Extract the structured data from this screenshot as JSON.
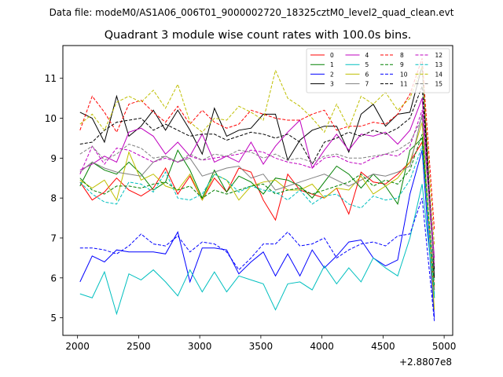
{
  "figure": {
    "suptitle": "Data file: modeM0/AS1A06_006T01_9000002720_18325cztM0_level2_quad_clean.evt"
  },
  "chart_data": {
    "type": "line",
    "title": "Quadrant 3 module wise count rates with 100.0s bins.",
    "xlabel": "",
    "ylabel": "",
    "x_offset_label": "+2.8807e8",
    "xlim": [
      1880,
      5070
    ],
    "ylim": [
      4.56,
      11.82
    ],
    "x_ticks": [
      2000,
      2500,
      3000,
      3500,
      4000,
      4500,
      5000
    ],
    "x_tick_labels": [
      "2000",
      "2500",
      "3000",
      "3500",
      "4000",
      "4500",
      "5000"
    ],
    "y_ticks": [
      5,
      6,
      7,
      8,
      9,
      10,
      11
    ],
    "y_tick_labels": [
      "5",
      "6",
      "7",
      "8",
      "9",
      "10",
      "11"
    ],
    "legend_position": "top-right",
    "x": [
      2020,
      2120,
      2220,
      2320,
      2420,
      2520,
      2620,
      2720,
      2820,
      2920,
      3020,
      3120,
      3220,
      3320,
      3420,
      3520,
      3620,
      3720,
      3820,
      3920,
      4020,
      4120,
      4220,
      4320,
      4420,
      4520,
      4620,
      4720,
      4820,
      4920
    ],
    "series": [
      {
        "name": "0",
        "color": "#ff0000",
        "dash": "solid",
        "values": [
          8.4,
          7.95,
          8.15,
          8.5,
          8.2,
          8.05,
          8.25,
          8.75,
          8.1,
          8.55,
          7.95,
          8.5,
          8.15,
          8.75,
          8.65,
          7.95,
          7.45,
          8.6,
          8.2,
          8.1,
          8.0,
          8.25,
          7.6,
          8.65,
          8.4,
          8.35,
          8.6,
          8.9,
          9.4,
          5.7
        ]
      },
      {
        "name": "1",
        "color": "#008000",
        "dash": "solid",
        "values": [
          8.3,
          8.9,
          8.7,
          8.6,
          8.9,
          8.6,
          8.2,
          8.4,
          9.2,
          8.7,
          8.0,
          8.7,
          8.15,
          8.55,
          8.4,
          8.1,
          8.5,
          8.45,
          8.3,
          8.0,
          8.4,
          8.8,
          8.6,
          8.25,
          8.6,
          8.3,
          7.85,
          9.2,
          9.5,
          5.5
        ]
      },
      {
        "name": "2",
        "color": "#0000ff",
        "dash": "solid",
        "values": [
          5.9,
          6.55,
          6.4,
          6.7,
          6.65,
          6.65,
          6.65,
          6.6,
          7.15,
          5.9,
          6.75,
          6.75,
          6.7,
          6.1,
          6.4,
          6.65,
          6.05,
          6.6,
          6.05,
          6.7,
          6.25,
          6.55,
          6.9,
          6.95,
          6.5,
          6.3,
          6.45,
          8.1,
          9.2,
          5.0
        ]
      },
      {
        "name": "3",
        "color": "#000000",
        "dash": "solid",
        "values": [
          10.15,
          10.0,
          9.4,
          10.55,
          9.55,
          9.8,
          10.2,
          9.7,
          10.2,
          9.7,
          9.1,
          10.25,
          9.55,
          9.7,
          9.75,
          10.1,
          10.1,
          8.95,
          9.45,
          9.7,
          9.8,
          9.8,
          9.15,
          10.1,
          10.35,
          9.8,
          10.1,
          10.15,
          11.3,
          6.0
        ]
      },
      {
        "name": "4",
        "color": "#bf00bf",
        "dash": "solid",
        "values": [
          8.7,
          8.85,
          9.05,
          8.9,
          9.65,
          9.75,
          9.55,
          9.1,
          9.4,
          9.05,
          9.6,
          8.9,
          9.05,
          8.9,
          9.4,
          8.85,
          9.3,
          9.65,
          9.95,
          8.75,
          9.2,
          9.6,
          9.2,
          9.6,
          9.55,
          9.65,
          9.35,
          9.7,
          10.5,
          6.5
        ]
      },
      {
        "name": "5",
        "color": "#00bfbf",
        "dash": "solid",
        "values": [
          5.6,
          5.5,
          6.15,
          5.1,
          6.1,
          5.95,
          6.2,
          5.9,
          5.55,
          6.2,
          5.65,
          6.15,
          5.65,
          6.05,
          5.95,
          5.85,
          5.2,
          5.85,
          5.9,
          5.7,
          6.3,
          5.85,
          6.25,
          5.9,
          6.5,
          6.25,
          6.05,
          7.0,
          8.35,
          5.5
        ]
      },
      {
        "name": "6",
        "color": "#bfbf00",
        "dash": "solid",
        "values": [
          8.45,
          8.25,
          8.45,
          7.95,
          9.15,
          8.45,
          8.6,
          8.3,
          8.2,
          8.6,
          7.95,
          8.6,
          8.45,
          7.95,
          8.3,
          8.4,
          8.45,
          8.2,
          8.2,
          8.35,
          8.0,
          8.25,
          8.2,
          8.55,
          8.1,
          8.3,
          8.5,
          8.9,
          9.9,
          5.2
        ]
      },
      {
        "name": "7",
        "color": "#808080",
        "dash": "solid",
        "values": [
          8.65,
          8.9,
          8.75,
          8.65,
          8.6,
          8.55,
          8.9,
          9.05,
          8.9,
          9.0,
          8.55,
          8.65,
          8.75,
          8.8,
          8.5,
          8.6,
          8.2,
          8.3,
          8.4,
          8.5,
          8.6,
          8.45,
          8.3,
          8.45,
          8.6,
          8.55,
          8.65,
          8.8,
          10.1,
          6.2
        ]
      },
      {
        "name": "8",
        "color": "#ff0000",
        "dash": "dashed",
        "values": [
          9.7,
          10.55,
          10.15,
          9.65,
          10.35,
          10.45,
          10.15,
          9.9,
          10.3,
          9.85,
          10.2,
          9.9,
          9.75,
          9.85,
          10.2,
          10.1,
          10.0,
          9.95,
          9.95,
          10.1,
          10.2,
          9.7,
          9.8,
          9.8,
          9.9,
          9.85,
          10.1,
          10.6,
          11.5,
          7.2
        ]
      },
      {
        "name": "9",
        "color": "#008000",
        "dash": "dashed",
        "values": [
          8.5,
          8.2,
          8.1,
          8.3,
          8.3,
          8.25,
          8.35,
          8.4,
          8.2,
          8.3,
          8.0,
          8.2,
          8.1,
          8.2,
          8.3,
          8.35,
          8.1,
          8.2,
          8.25,
          8.1,
          8.2,
          8.3,
          8.4,
          8.6,
          8.3,
          8.45,
          8.35,
          8.7,
          9.6,
          5.8
        ]
      },
      {
        "name": "10",
        "color": "#0000ff",
        "dash": "dashed",
        "values": [
          6.75,
          6.75,
          6.7,
          6.6,
          6.8,
          7.1,
          6.85,
          6.8,
          7.05,
          6.65,
          6.9,
          6.85,
          6.65,
          6.2,
          6.5,
          6.85,
          6.85,
          7.15,
          6.8,
          6.85,
          7.0,
          6.5,
          6.7,
          6.85,
          6.9,
          6.8,
          7.05,
          7.1,
          8.0,
          4.9
        ]
      },
      {
        "name": "11",
        "color": "#000000",
        "dash": "dashed",
        "values": [
          9.35,
          9.4,
          9.7,
          9.9,
          9.95,
          10.0,
          9.7,
          9.85,
          9.7,
          9.55,
          9.6,
          9.6,
          9.45,
          9.55,
          9.65,
          9.6,
          9.5,
          9.6,
          9.4,
          8.85,
          9.4,
          9.5,
          9.65,
          9.55,
          9.7,
          9.6,
          9.75,
          10.0,
          10.8,
          6.2
        ]
      },
      {
        "name": "12",
        "color": "#bf00bf",
        "dash": "dashed",
        "values": [
          8.6,
          9.3,
          8.85,
          9.25,
          9.2,
          9.05,
          8.9,
          9.0,
          8.9,
          9.05,
          8.95,
          9.0,
          9.05,
          9.1,
          9.2,
          9.15,
          9.0,
          8.9,
          8.85,
          8.75,
          9.0,
          9.05,
          8.9,
          8.85,
          9.0,
          9.1,
          9.05,
          9.3,
          10.2,
          6.3
        ]
      },
      {
        "name": "13",
        "color": "#00bfbf",
        "dash": "dashed",
        "values": [
          8.4,
          8.1,
          7.9,
          7.85,
          8.4,
          8.35,
          8.15,
          8.65,
          8.0,
          7.95,
          8.1,
          8.6,
          8.45,
          8.15,
          8.3,
          8.2,
          8.15,
          7.95,
          8.2,
          7.85,
          8.05,
          8.1,
          7.85,
          7.75,
          8.05,
          7.95,
          8.0,
          8.45,
          9.3,
          5.6
        ]
      },
      {
        "name": "14",
        "color": "#bfbf00",
        "dash": "dashed",
        "values": [
          9.85,
          10.1,
          9.7,
          10.4,
          10.55,
          10.4,
          10.7,
          10.25,
          10.85,
          9.9,
          9.65,
          10.0,
          9.95,
          10.3,
          10.15,
          9.95,
          11.2,
          10.5,
          10.3,
          10.0,
          9.65,
          10.35,
          9.75,
          10.55,
          10.35,
          10.65,
          10.2,
          10.5,
          11.3,
          6.8
        ]
      },
      {
        "name": "15",
        "color": "#808080",
        "dash": "dashed",
        "values": [
          9.1,
          9.3,
          8.95,
          9.1,
          9.35,
          9.25,
          9.0,
          9.05,
          8.9,
          9.1,
          8.95,
          9.1,
          9.05,
          9.2,
          9.15,
          9.0,
          9.1,
          8.95,
          9.0,
          8.9,
          9.05,
          9.1,
          9.0,
          9.0,
          9.05,
          9.1,
          9.2,
          9.4,
          10.0,
          6.4
        ]
      }
    ]
  }
}
